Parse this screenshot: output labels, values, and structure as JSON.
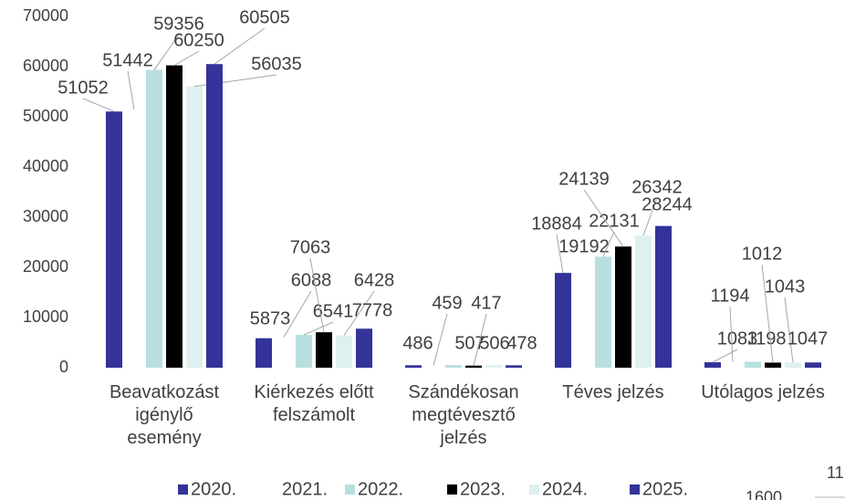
{
  "chart_data": {
    "type": "bar",
    "categories": [
      "Beavatkozást igénylő esemény",
      "Kiérkezés előtt felszámolt",
      "Szándékosan megtévesztő jelzés",
      "Téves jelzés",
      "Utólagos jelzés"
    ],
    "series": [
      {
        "name": "2020.",
        "color": "#333399",
        "values": [
          51052,
          5873,
          486,
          18884,
          1083
        ]
      },
      {
        "name": "2021.",
        "color": "#ffffff",
        "values": [
          51442,
          6088,
          459,
          19192,
          1194
        ]
      },
      {
        "name": "2022.",
        "color": "#b8dfe0",
        "values": [
          59356,
          6541,
          507,
          22131,
          1198
        ]
      },
      {
        "name": "2023.",
        "color": "#000000",
        "values": [
          60250,
          7063,
          417,
          24139,
          1012
        ]
      },
      {
        "name": "2024.",
        "color": "#def0f0",
        "values": [
          56035,
          6428,
          506,
          26342,
          1043
        ]
      },
      {
        "name": "2025.",
        "color": "#333399",
        "values": [
          60505,
          7778,
          478,
          28244,
          1047
        ]
      }
    ],
    "ylim": [
      0,
      70000
    ],
    "yticks": [
      0,
      10000,
      20000,
      30000,
      40000,
      50000,
      60000,
      70000
    ],
    "grid": false,
    "legend": "bottom"
  },
  "clipped_texts": [
    "1600",
    "11"
  ]
}
